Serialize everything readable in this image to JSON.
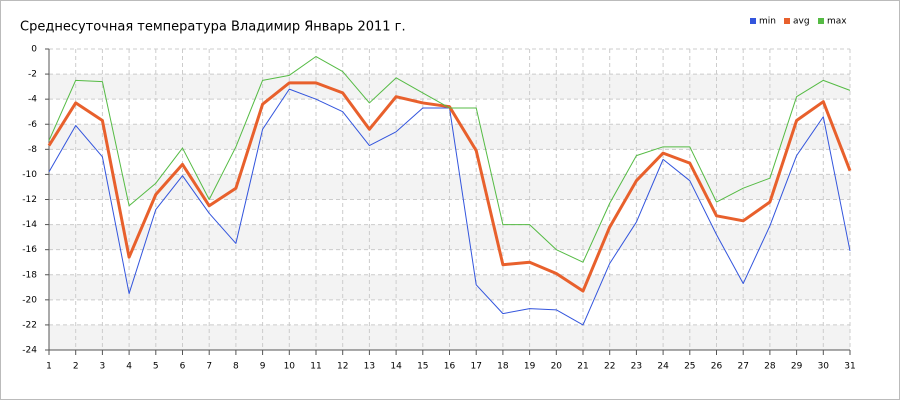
{
  "chart_data": {
    "type": "line",
    "title": "Среднесуточная температура Владимир  Январь 2011 г.",
    "x": [
      1,
      2,
      3,
      4,
      5,
      6,
      7,
      8,
      9,
      10,
      11,
      12,
      13,
      14,
      15,
      16,
      17,
      18,
      19,
      20,
      21,
      22,
      23,
      24,
      25,
      26,
      27,
      28,
      29,
      30,
      31
    ],
    "series": [
      {
        "name": "min",
        "color": "#3355dd",
        "values": [
          -9.8,
          -6.1,
          -8.6,
          -19.5,
          -12.8,
          -10.1,
          -13.1,
          -15.5,
          -6.4,
          -3.2,
          -4.0,
          -5.0,
          -7.7,
          -6.6,
          -4.7,
          -4.7,
          -18.8,
          -21.1,
          -20.7,
          -20.8,
          -22.0,
          -17.1,
          -13.8,
          -8.8,
          -10.5,
          -14.8,
          -18.7,
          -14.1,
          -8.5,
          -5.4,
          -16.1
        ]
      },
      {
        "name": "avg",
        "color": "#e8602c",
        "values": [
          -7.7,
          -4.3,
          -5.7,
          -16.6,
          -11.6,
          -9.2,
          -12.5,
          -11.1,
          -4.4,
          -2.7,
          -2.7,
          -3.5,
          -6.4,
          -3.8,
          -4.3,
          -4.6,
          -8.1,
          -17.2,
          -17.0,
          -17.9,
          -19.3,
          -14.2,
          -10.5,
          -8.3,
          -9.1,
          -13.3,
          -13.7,
          -12.2,
          -5.7,
          -4.2,
          -9.7
        ]
      },
      {
        "name": "max",
        "color": "#55bb44",
        "values": [
          -7.3,
          -2.5,
          -2.6,
          -12.5,
          -10.7,
          -7.9,
          -12.0,
          -7.8,
          -2.5,
          -2.1,
          -0.6,
          -1.8,
          -4.3,
          -2.3,
          -3.5,
          -4.7,
          -4.7,
          -14.0,
          -14.0,
          -16.0,
          -17.0,
          -12.3,
          -8.5,
          -7.8,
          -7.8,
          -12.2,
          -11.1,
          -10.3,
          -3.8,
          -2.5,
          -3.3
        ]
      }
    ],
    "xlim": [
      1,
      31
    ],
    "xticks": [
      1,
      2,
      3,
      4,
      5,
      6,
      7,
      8,
      9,
      10,
      11,
      12,
      13,
      14,
      15,
      16,
      17,
      18,
      19,
      20,
      21,
      22,
      23,
      24,
      25,
      26,
      27,
      28,
      29,
      30,
      31
    ],
    "ylim": [
      -24,
      0
    ],
    "yticks": [
      0,
      -2,
      -4,
      -6,
      -8,
      -10,
      -12,
      -14,
      -16,
      -18,
      -20,
      -22,
      -24
    ],
    "grid": true,
    "legend": "top-right"
  }
}
